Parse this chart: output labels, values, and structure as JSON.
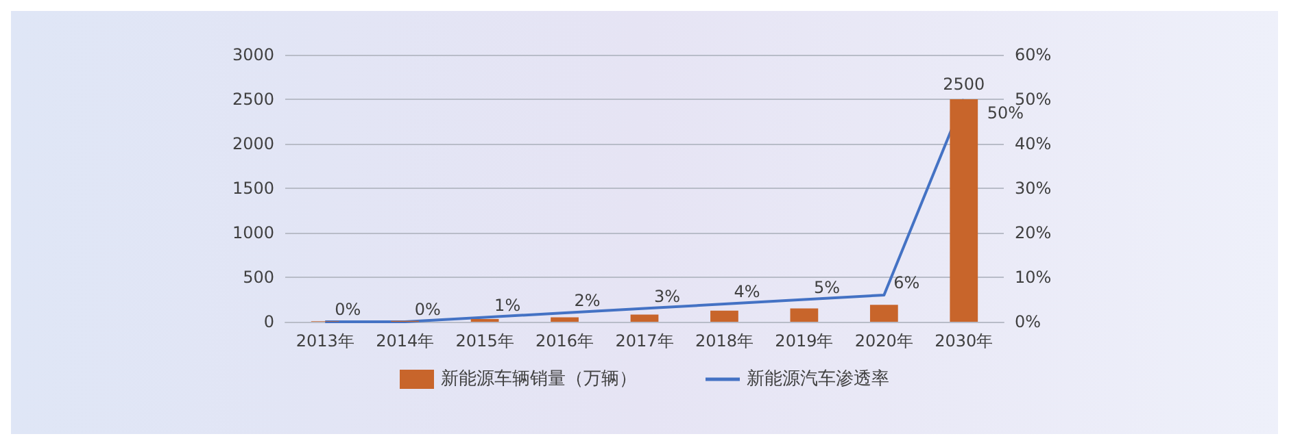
{
  "chart_data": {
    "type": "bar",
    "categories": [
      "2013年",
      "2014年",
      "2015年",
      "2016年",
      "2017年",
      "2018年",
      "2019年",
      "2020年",
      "2030年"
    ],
    "series": [
      {
        "name": "新能源车辆销量（万辆）",
        "color": "#c8652b",
        "values": [
          5,
          10,
          30,
          50,
          80,
          125,
          150,
          190,
          2500
        ],
        "value_labels": [
          null,
          null,
          null,
          null,
          null,
          null,
          null,
          null,
          "2500"
        ]
      },
      {
        "name": "新能源汽车渗透率",
        "type": "line",
        "axis": "y2",
        "color": "#4472c4",
        "values": [
          0,
          0,
          1,
          2,
          3,
          4,
          5,
          6,
          50
        ],
        "value_labels": [
          "0%",
          "0%",
          "1%",
          "2%",
          "3%",
          "4%",
          "5%",
          "6%",
          "50%"
        ]
      }
    ],
    "ylim": [
      0,
      3000
    ],
    "yticks": [
      0,
      500,
      1000,
      1500,
      2000,
      2500,
      3000
    ],
    "y2lim": [
      0,
      60
    ],
    "y2ticks": [
      {
        "value": 0,
        "label": "0%"
      },
      {
        "value": 10,
        "label": "10%"
      },
      {
        "value": 20,
        "label": "20%"
      },
      {
        "value": 30,
        "label": "30%"
      },
      {
        "value": 40,
        "label": "40%"
      },
      {
        "value": 50,
        "label": "50%"
      },
      {
        "value": 60,
        "label": "60%"
      }
    ],
    "grid": "y",
    "legend": "bottom",
    "marker": "none",
    "line_style": "solid"
  }
}
